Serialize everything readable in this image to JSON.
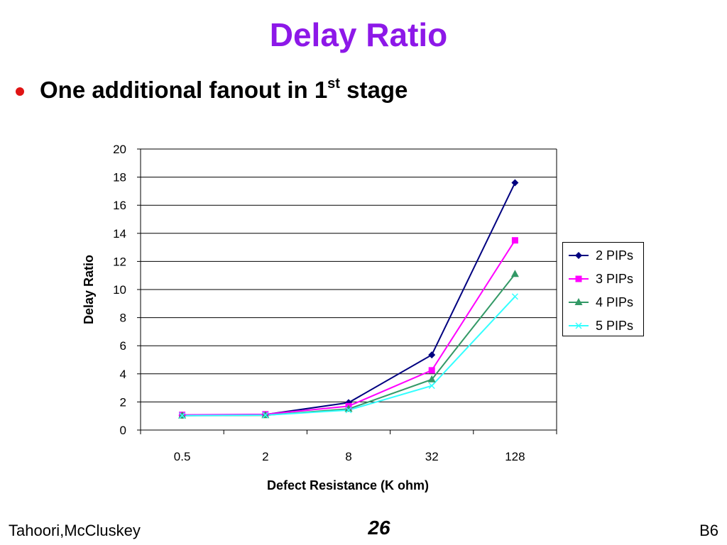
{
  "slide": {
    "title": "Delay Ratio",
    "bullet_main": "One additional fanout in 1",
    "bullet_sup": "st",
    "bullet_end": " stage"
  },
  "footer": {
    "authors": "Tahoori,McCluskey",
    "page_number": "26",
    "section": "B6"
  },
  "chart_data": {
    "type": "line",
    "title": "",
    "xlabel": "Defect Resistance (K ohm)",
    "ylabel": "Delay Ratio",
    "categories": [
      "0.5",
      "2",
      "8",
      "32",
      "128"
    ],
    "ylim": [
      0,
      20
    ],
    "yticks": [
      "0",
      "2",
      "4",
      "6",
      "8",
      "10",
      "12",
      "14",
      "16",
      "18",
      "20"
    ],
    "grid": "horizontal",
    "legend_position": "right",
    "series": [
      {
        "name": "2 PIPs",
        "values": [
          1.05,
          1.1,
          1.95,
          5.35,
          17.6
        ],
        "color": "#000080",
        "marker": "diamond"
      },
      {
        "name": "3 PIPs",
        "values": [
          1.08,
          1.12,
          1.7,
          4.25,
          13.5
        ],
        "color": "#ff00ff",
        "marker": "square"
      },
      {
        "name": "4 PIPs",
        "values": [
          1.02,
          1.05,
          1.5,
          3.6,
          11.1
        ],
        "color": "#339966",
        "marker": "triangle"
      },
      {
        "name": "5 PIPs",
        "values": [
          1.03,
          1.06,
          1.42,
          3.15,
          9.5
        ],
        "color": "#33ffff",
        "marker": "x"
      }
    ]
  }
}
